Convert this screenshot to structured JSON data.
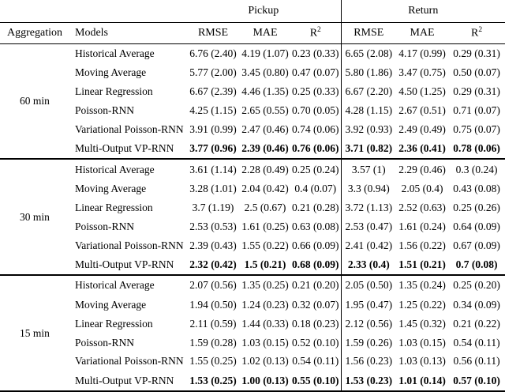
{
  "page": {
    "background": "#ffffff",
    "text_color": "#000000",
    "rule_color": "#000000"
  },
  "table": {
    "column_groups": [
      {
        "label": "Pickup"
      },
      {
        "label": "Return"
      }
    ],
    "headers": {
      "aggregation": "Aggregation",
      "models": "Models",
      "metrics": [
        {
          "base": "RMSE",
          "sup": ""
        },
        {
          "base": "MAE",
          "sup": ""
        },
        {
          "base": "R",
          "sup": "2"
        }
      ]
    },
    "groups": [
      {
        "aggregation": "60 min",
        "rows": [
          {
            "model": "Historical Average",
            "bold": false,
            "pickup": [
              "6.76 (2.40)",
              "4.19 (1.07)",
              "0.23 (0.33)"
            ],
            "return": [
              "6.65 (2.08)",
              "4.17 (0.99)",
              "0.29 (0.31)"
            ]
          },
          {
            "model": "Moving Average",
            "bold": false,
            "pickup": [
              "5.77 (2.00)",
              "3.45 (0.80)",
              "0.47 (0.07)"
            ],
            "return": [
              "5.80 (1.86)",
              "3.47 (0.75)",
              "0.50 (0.07)"
            ]
          },
          {
            "model": "Linear Regression",
            "bold": false,
            "pickup": [
              "6.67 (2.39)",
              "4.46 (1.35)",
              "0.25 (0.33)"
            ],
            "return": [
              "6.67 (2.20)",
              "4.50 (1.25)",
              "0.29 (0.31)"
            ]
          },
          {
            "model": "Poisson-RNN",
            "bold": false,
            "pickup": [
              "4.25 (1.15)",
              "2.65 (0.55)",
              "0.70 (0.05)"
            ],
            "return": [
              "4.28 (1.15)",
              "2.67 (0.51)",
              "0.71 (0.07)"
            ]
          },
          {
            "model": "Variational Poisson-RNN",
            "bold": false,
            "pickup": [
              "3.91 (0.99)",
              "2.47 (0.46)",
              "0.74 (0.06)"
            ],
            "return": [
              "3.92 (0.93)",
              "2.49 (0.49)",
              "0.75 (0.07)"
            ]
          },
          {
            "model": "Multi-Output VP-RNN",
            "bold": true,
            "pickup": [
              "3.77 (0.96)",
              "2.39 (0.46)",
              "0.76 (0.06)"
            ],
            "return": [
              "3.71 (0.82)",
              "2.36 (0.41)",
              "0.78 (0.06)"
            ]
          }
        ]
      },
      {
        "aggregation": "30 min",
        "rows": [
          {
            "model": "Historical Average",
            "bold": false,
            "pickup": [
              "3.61 (1.14)",
              "2.28 (0.49)",
              "0.25 (0.24)"
            ],
            "return": [
              "3.57 (1)",
              "2.29 (0.46)",
              "0.3 (0.24)"
            ]
          },
          {
            "model": "Moving Average",
            "bold": false,
            "pickup": [
              "3.28 (1.01)",
              "2.04 (0.42)",
              "0.4 (0.07)"
            ],
            "return": [
              "3.3 (0.94)",
              "2.05 (0.4)",
              "0.43 (0.08)"
            ]
          },
          {
            "model": "Linear Regression",
            "bold": false,
            "pickup": [
              "3.7 (1.19)",
              "2.5 (0.67)",
              "0.21 (0.28)"
            ],
            "return": [
              "3.72 (1.13)",
              "2.52 (0.63)",
              "0.25 (0.26)"
            ]
          },
          {
            "model": "Poisson-RNN",
            "bold": false,
            "pickup": [
              "2.53 (0.53)",
              "1.61 (0.25)",
              "0.63 (0.08)"
            ],
            "return": [
              "2.53 (0.47)",
              "1.61 (0.24)",
              "0.64 (0.09)"
            ]
          },
          {
            "model": "Variational Poisson-RNN",
            "bold": false,
            "pickup": [
              "2.39 (0.43)",
              "1.55 (0.22)",
              "0.66 (0.09)"
            ],
            "return": [
              "2.41 (0.42)",
              "1.56 (0.22)",
              "0.67 (0.09)"
            ]
          },
          {
            "model": "Multi-Output VP-RNN",
            "bold": true,
            "pickup": [
              "2.32 (0.42)",
              "1.5 (0.21)",
              "0.68 (0.09)"
            ],
            "return": [
              "2.33 (0.4)",
              "1.51 (0.21)",
              "0.7 (0.08)"
            ]
          }
        ]
      },
      {
        "aggregation": "15 min",
        "rows": [
          {
            "model": "Historical Average",
            "bold": false,
            "pickup": [
              "2.07 (0.56)",
              "1.35 (0.25)",
              "0.21 (0.20)"
            ],
            "return": [
              "2.05 (0.50)",
              "1.35 (0.24)",
              "0.25 (0.20)"
            ]
          },
          {
            "model": "Moving Average",
            "bold": false,
            "pickup": [
              "1.94 (0.50)",
              "1.24 (0.23)",
              "0.32 (0.07)"
            ],
            "return": [
              "1.95 (0.47)",
              "1.25 (0.22)",
              "0.34 (0.09)"
            ]
          },
          {
            "model": "Linear Regression",
            "bold": false,
            "pickup": [
              "2.11 (0.59)",
              "1.44 (0.33)",
              "0.18 (0.23)"
            ],
            "return": [
              "2.12 (0.56)",
              "1.45 (0.32)",
              "0.21 (0.22)"
            ]
          },
          {
            "model": "Poisson-RNN",
            "bold": false,
            "pickup": [
              "1.59 (0.28)",
              "1.03 (0.15)",
              "0.52 (0.10)"
            ],
            "return": [
              "1.59 (0.26)",
              "1.03 (0.15)",
              "0.54 (0.11)"
            ]
          },
          {
            "model": "Variational Poisson-RNN",
            "bold": false,
            "pickup": [
              "1.55 (0.25)",
              "1.02 (0.13)",
              "0.54 (0.11)"
            ],
            "return": [
              "1.56 (0.23)",
              "1.03 (0.13)",
              "0.56 (0.11)"
            ]
          },
          {
            "model": "Multi-Output VP-RNN",
            "bold": true,
            "pickup": [
              "1.53 (0.25)",
              "1.00 (0.13)",
              "0.55 (0.10)"
            ],
            "return": [
              "1.53 (0.23)",
              "1.01 (0.14)",
              "0.57 (0.10)"
            ]
          }
        ]
      }
    ]
  }
}
